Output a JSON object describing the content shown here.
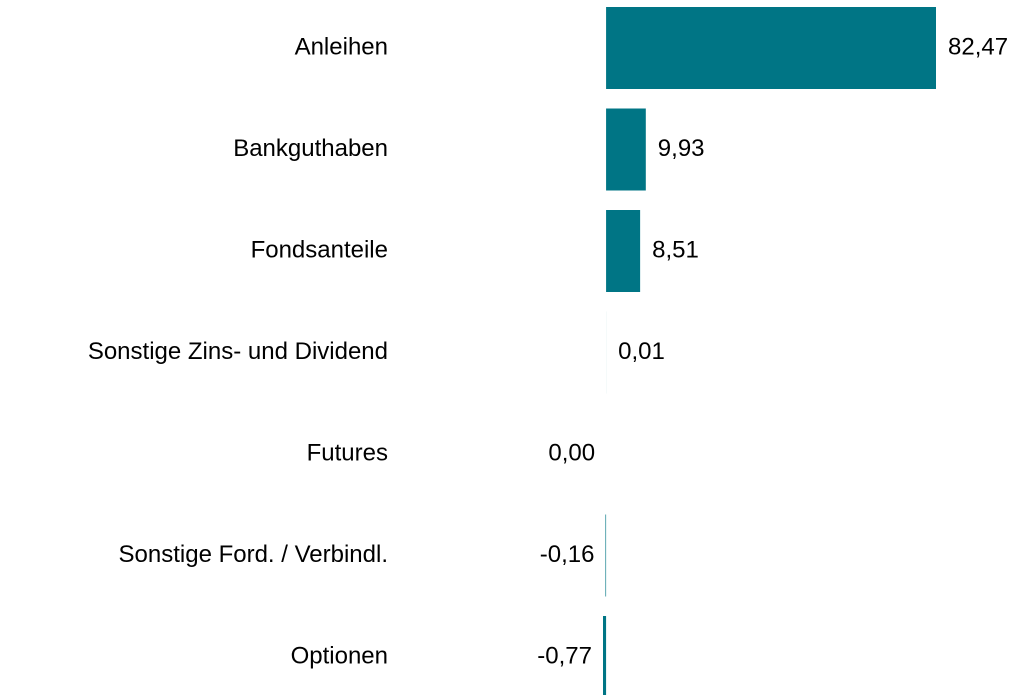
{
  "chart_data": {
    "type": "bar",
    "orientation": "horizontal",
    "categories": [
      "Anleihen",
      "Bankguthaben",
      "Fondsanteile",
      "Sonstige Zins- und Dividend",
      "Futures",
      "Sonstige Ford. / Verbindl.",
      "Optionen"
    ],
    "values": [
      82.47,
      9.93,
      8.51,
      0.01,
      0.0,
      -0.16,
      -0.77
    ],
    "value_labels": [
      "82,47",
      "9,93",
      "8,51",
      "0,01",
      "0,00",
      "-0,16",
      "-0,77"
    ],
    "color": "#007585"
  }
}
